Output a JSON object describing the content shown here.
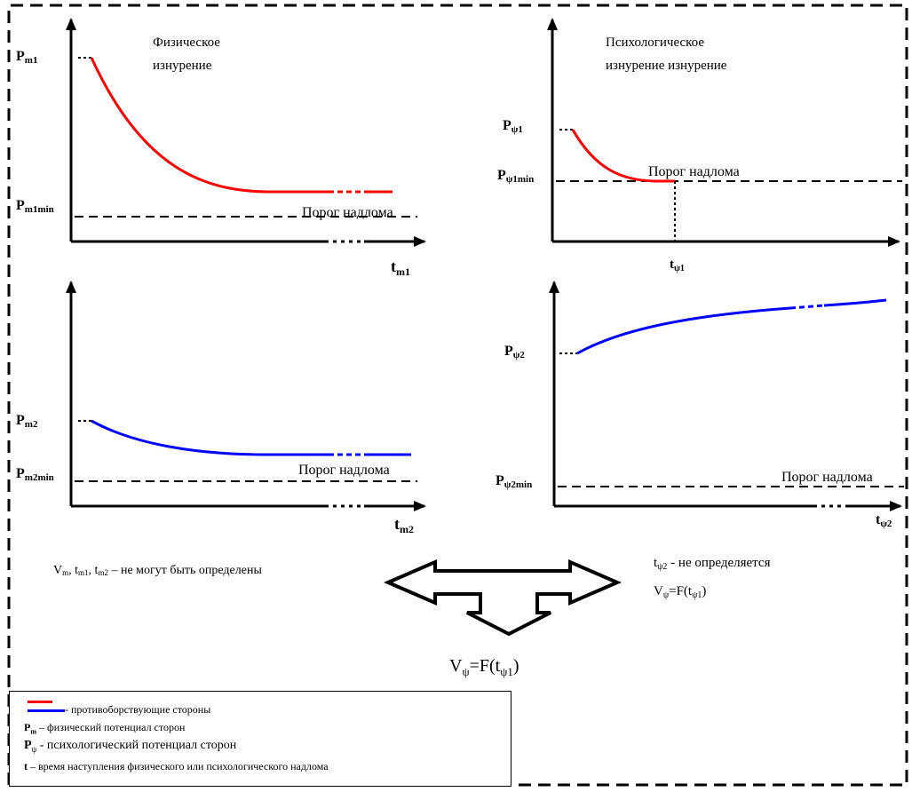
{
  "panels": {
    "tl": {
      "title_line1": "Физическое",
      "title_line2": "изнурение",
      "y_top_label": "P",
      "y_top_sub": "m1",
      "y_min_label": "P",
      "y_min_sub": "m1min",
      "threshold_label": "Порог надлома",
      "x_label": "t",
      "x_sub": "m1",
      "curve_color": "#ff0000"
    },
    "tr": {
      "title_line1": "Психологическое",
      "title_line2": "изнурение изнурение",
      "y_top_label": "P",
      "y_top_sub": "ψ1",
      "y_min_label": "P",
      "y_min_sub": "ψ1min",
      "threshold_label": "Порог надлома",
      "x_label": "t",
      "x_sub": "ψ1",
      "curve_color": "#ff0000"
    },
    "bl": {
      "y_top_label": "P",
      "y_top_sub": "m2",
      "y_min_label": "P",
      "y_min_sub": "m2min",
      "threshold_label": "Порог надлома",
      "x_label": "t",
      "x_sub": "m2",
      "curve_color": "#0000ff"
    },
    "br": {
      "y_top_label": "P",
      "y_top_sub": "ψ2",
      "y_min_label": "P",
      "y_min_sub": "ψ2min",
      "threshold_label": "Порог надлома",
      "x_label": "t",
      "x_sub": "ψ2",
      "curve_color": "#0000ff"
    }
  },
  "notes": {
    "left_v": "V",
    "left_sub1": "m",
    "left_sep1": ", t",
    "left_sub2": "m1",
    "left_sep2": ", t",
    "left_sub3": "m2",
    "left_text": " – не могут быть определены",
    "right_line1_t": "t",
    "right_line1_sub": "ψ2",
    "right_line1_text": " - не определяется",
    "right_line2_v": "V",
    "right_line2_sub": "ψ",
    "right_line2_eq": "=F(t",
    "right_line2_sub2": "ψ1",
    "right_line2_close": ")",
    "formula_v": "V",
    "formula_sub": "ψ",
    "formula_eq": "=F(t",
    "formula_sub2": "ψ1",
    "formula_close": ")"
  },
  "legend": {
    "red_color": "#ff0000",
    "blue_color": "#0000ff",
    "sides": "- противоборствующие стороны",
    "pm_symbol": "P",
    "pm_sub": "m",
    "pm_text": " – физический потенциал сторон",
    "ppsi_symbol": "P",
    "ppsi_sub": "ψ",
    "ppsi_text": " - психологический потенциал сторон",
    "t_symbol": "t",
    "t_text": " – время наступления физического или психологического надлома"
  }
}
